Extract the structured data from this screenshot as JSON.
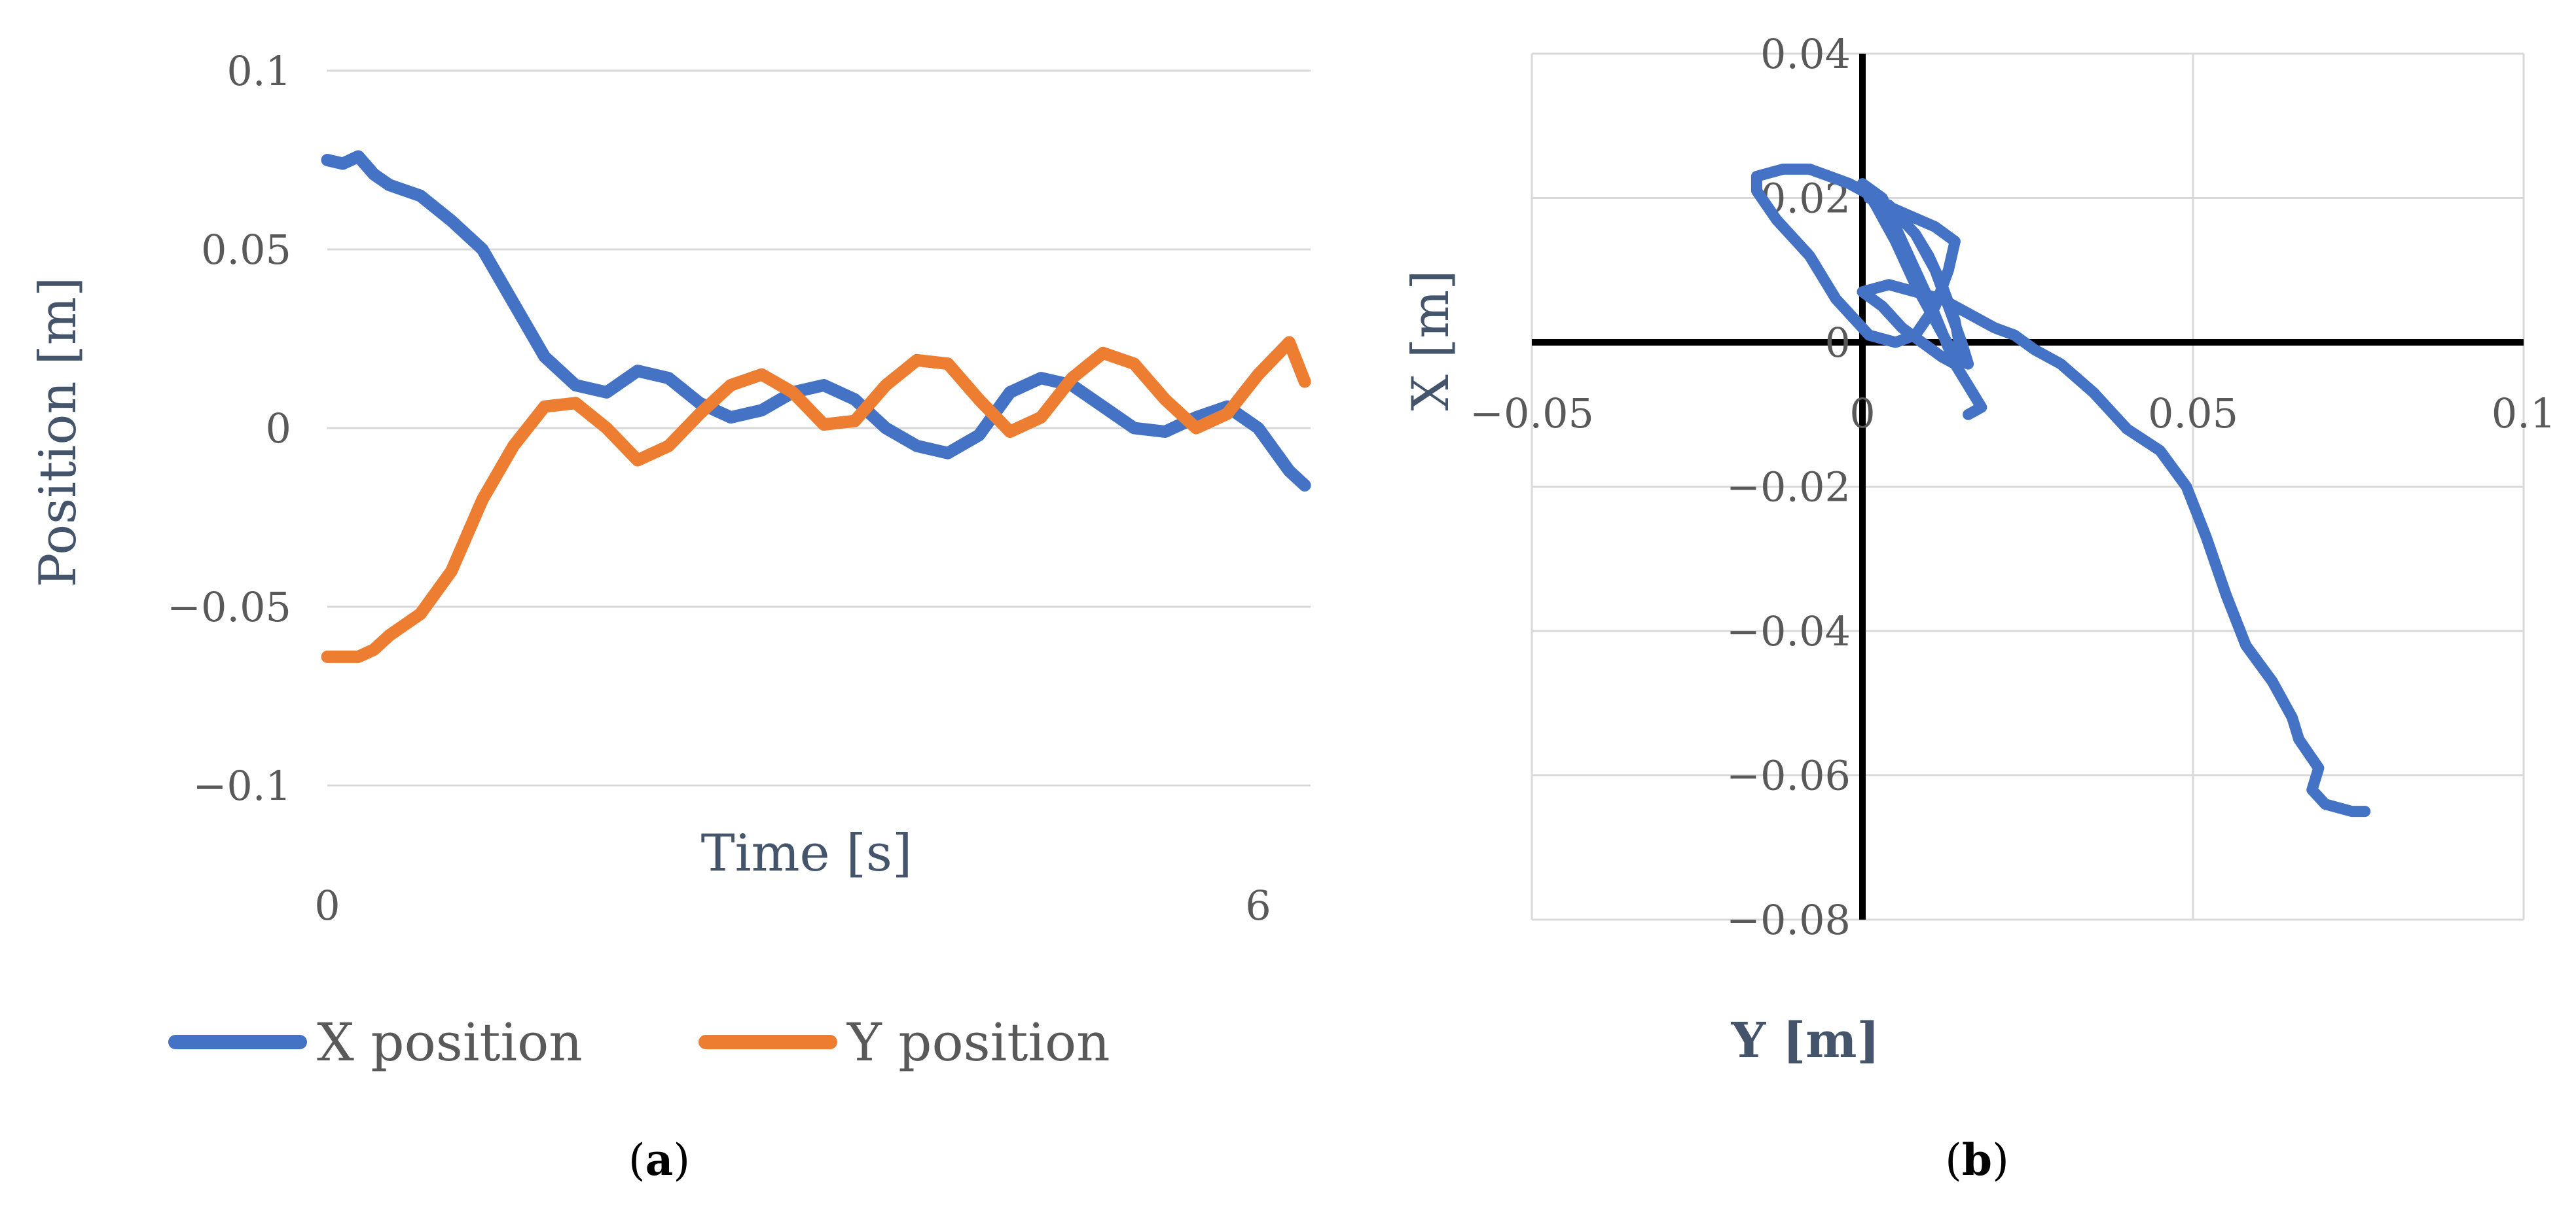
{
  "colors": {
    "x_series": "#4472c4",
    "y_series": "#ed7d31",
    "grid": "#d9d9d9",
    "axis_text": "#595959",
    "title_text": "#44546a"
  },
  "captions": {
    "a": "a",
    "b": "b"
  },
  "chart_data": [
    {
      "panel": "a",
      "type": "line",
      "xlabel": "Time [s]",
      "ylabel": "Position [m]",
      "xlim": [
        0,
        6.3
      ],
      "ylim": [
        -0.1,
        0.1
      ],
      "x_ticks": [
        "0",
        "6"
      ],
      "y_ticks": [
        "0.1",
        "0.05",
        "0",
        "−0.05",
        "−0.1"
      ],
      "y_tick_values": [
        0.1,
        0.05,
        0,
        -0.05,
        -0.1
      ],
      "legend": "bottom",
      "series": [
        {
          "name": "X position",
          "x": [
            0,
            0.1,
            0.2,
            0.3,
            0.4,
            0.6,
            0.8,
            1.0,
            1.2,
            1.4,
            1.6,
            1.8,
            2.0,
            2.2,
            2.4,
            2.6,
            2.8,
            3.0,
            3.2,
            3.4,
            3.6,
            3.8,
            4.0,
            4.2,
            4.4,
            4.6,
            4.8,
            5.0,
            5.2,
            5.4,
            5.6,
            5.8,
            6.0,
            6.2,
            6.3
          ],
          "y": [
            0.075,
            0.074,
            0.076,
            0.071,
            0.068,
            0.065,
            0.058,
            0.05,
            0.035,
            0.02,
            0.012,
            0.01,
            0.016,
            0.014,
            0.007,
            0.003,
            0.005,
            0.01,
            0.012,
            0.008,
            0.0,
            -0.005,
            -0.007,
            -0.002,
            0.01,
            0.014,
            0.012,
            0.006,
            0.0,
            -0.001,
            0.003,
            0.006,
            0.0,
            -0.012,
            -0.016
          ]
        },
        {
          "name": "Y position",
          "x": [
            0,
            0.1,
            0.2,
            0.3,
            0.4,
            0.6,
            0.8,
            1.0,
            1.2,
            1.4,
            1.6,
            1.8,
            2.0,
            2.2,
            2.4,
            2.6,
            2.8,
            3.0,
            3.2,
            3.4,
            3.6,
            3.8,
            4.0,
            4.2,
            4.4,
            4.6,
            4.8,
            5.0,
            5.2,
            5.4,
            5.6,
            5.8,
            6.0,
            6.2,
            6.3
          ],
          "y": [
            -0.064,
            -0.064,
            -0.064,
            -0.062,
            -0.058,
            -0.052,
            -0.04,
            -0.02,
            -0.005,
            0.006,
            0.007,
            0.0,
            -0.009,
            -0.005,
            0.004,
            0.012,
            0.015,
            0.01,
            0.001,
            0.002,
            0.012,
            0.019,
            0.018,
            0.008,
            -0.001,
            0.003,
            0.014,
            0.021,
            0.018,
            0.008,
            0.0,
            0.004,
            0.015,
            0.024,
            0.013
          ]
        }
      ]
    },
    {
      "panel": "b",
      "type": "line",
      "xlabel": "Y [m]",
      "ylabel": "X [m]",
      "xlim": [
        -0.05,
        0.1
      ],
      "ylim": [
        -0.08,
        0.04
      ],
      "x_ticks": [
        "−0.05",
        "0",
        "0.05",
        "0.1"
      ],
      "x_tick_values": [
        -0.05,
        0,
        0.05,
        0.1
      ],
      "y_ticks": [
        "0.04",
        "0.02",
        "0",
        "−0.02",
        "−0.04",
        "−0.06",
        "−0.08"
      ],
      "y_tick_values": [
        0.04,
        0.02,
        0,
        -0.02,
        -0.04,
        -0.06,
        -0.08
      ],
      "series": [
        {
          "x": [
            0.076,
            0.074,
            0.07,
            0.068,
            0.069,
            0.066,
            0.065,
            0.062,
            0.058,
            0.055,
            0.052,
            0.049,
            0.045,
            0.04,
            0.035,
            0.03,
            0.026,
            0.023,
            0.02,
            0.016,
            0.012,
            0.008,
            0.004,
            0.0,
            0.003,
            0.006,
            0.009,
            0.012,
            0.014,
            0.015,
            0.014,
            0.012,
            0.01,
            0.008,
            0.005,
            0.002,
            -0.002,
            -0.005,
            -0.008,
            -0.012,
            -0.016,
            -0.016,
            -0.013,
            -0.008,
            -0.004,
            0.001,
            0.005,
            0.008,
            0.011,
            0.013,
            0.014,
            0.011,
            0.006,
            0.001,
            0.004,
            0.008,
            0.011,
            0.013,
            0.015,
            0.016,
            0.014,
            0.011,
            0.008,
            0.005,
            0.002,
            0.0,
            0.003,
            0.006,
            0.01,
            0.014,
            0.018,
            0.016
          ],
          "y": [
            -0.065,
            -0.065,
            -0.064,
            -0.062,
            -0.059,
            -0.055,
            -0.052,
            -0.047,
            -0.042,
            -0.035,
            -0.027,
            -0.02,
            -0.015,
            -0.012,
            -0.007,
            -0.003,
            -0.001,
            0.001,
            0.002,
            0.004,
            0.006,
            0.007,
            0.008,
            0.007,
            0.005,
            0.002,
            0.0,
            -0.002,
            -0.003,
            -0.002,
            0.003,
            0.008,
            0.012,
            0.015,
            0.018,
            0.02,
            0.022,
            0.023,
            0.024,
            0.024,
            0.023,
            0.021,
            0.017,
            0.012,
            0.006,
            0.001,
            0.0,
            0.001,
            0.005,
            0.01,
            0.014,
            0.016,
            0.018,
            0.02,
            0.019,
            0.015,
            0.01,
            0.005,
            0.0,
            -0.003,
            -0.002,
            0.003,
            0.008,
            0.014,
            0.019,
            0.022,
            0.02,
            0.014,
            0.006,
            -0.003,
            -0.009,
            -0.01
          ]
        }
      ]
    }
  ]
}
